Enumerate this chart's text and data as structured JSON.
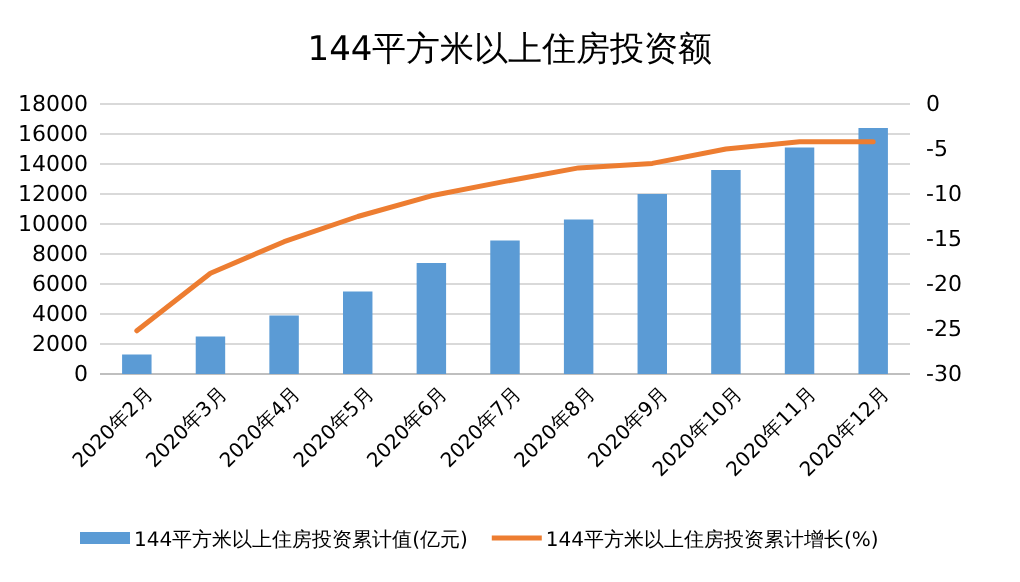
{
  "chart_data": {
    "type": "bar",
    "title": "144平方米以上住房投资额",
    "categories": [
      "2020年2月",
      "2020年3月",
      "2020年4月",
      "2020年5月",
      "2020年6月",
      "2020年7月",
      "2020年8月",
      "2020年9月",
      "2020年10月",
      "2020年11月",
      "2020年12月"
    ],
    "series": [
      {
        "name": "144平方米以上住房投资累计值(亿元)",
        "color": "#5b9bd5",
        "values": [
          1300,
          2500,
          3900,
          5500,
          7400,
          8900,
          10300,
          12000,
          13600,
          15100,
          16400
        ]
      },
      {
        "name": "144平方米以上住房投资累计增长(%)",
        "type": "line",
        "axis": "y2",
        "color": "#ed7d31",
        "values": [
          -25.2,
          -18.8,
          -15.3,
          -12.5,
          -10.2,
          -8.6,
          -7.1,
          -6.6,
          -5.0,
          -4.2,
          -4.2
        ]
      }
    ],
    "ylim": [
      0,
      18000
    ],
    "yticks": [
      0,
      2000,
      4000,
      6000,
      8000,
      10000,
      12000,
      14000,
      16000,
      18000
    ],
    "y2lim": [
      -30,
      0
    ],
    "y2ticks": [
      -30,
      -25,
      -20,
      -15,
      -10,
      -5,
      0
    ],
    "grid": "y",
    "legend": "bottom"
  }
}
